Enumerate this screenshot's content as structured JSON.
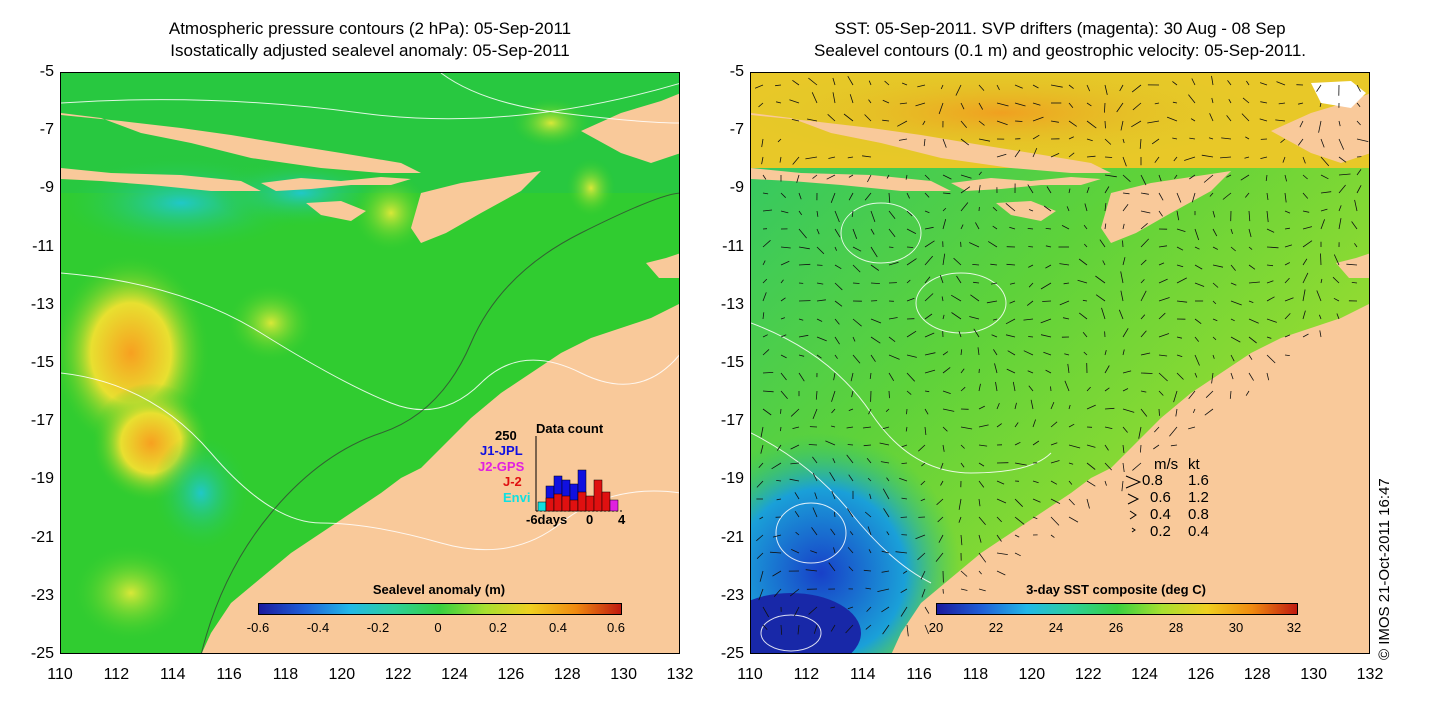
{
  "left_panel": {
    "title_line1": "Atmospheric pressure contours (2 hPa): 05-Sep-2011",
    "title_line2": "Isostatically adjusted sealevel anomaly: 05-Sep-2011",
    "colorbar": {
      "title": "Sealevel anomaly (m)",
      "ticks": [
        "-0.6",
        "-0.4",
        "-0.2",
        "0",
        "0.2",
        "0.4",
        "0.6"
      ]
    },
    "inset": {
      "title": "Data count",
      "ymax": "250",
      "sources": [
        {
          "label": "J1-JPL",
          "color": "#1010e0"
        },
        {
          "label": "J2-GPS",
          "color": "#e020e0"
        },
        {
          "label": "J-2",
          "color": "#e01010"
        },
        {
          "label": "Envi",
          "color": "#10e0e0"
        }
      ],
      "xlabel_left": "-6days",
      "xlabel_mid": "0",
      "xlabel_right": "4"
    }
  },
  "right_panel": {
    "title_line1": "SST: 05-Sep-2011. SVP drifters (magenta): 30 Aug - 08 Sep",
    "title_line2": "Sealevel contours (0.1 m) and geostrophic velocity: 05-Sep-2011.",
    "colorbar": {
      "title": "3-day SST composite (deg C)",
      "ticks": [
        "20",
        "22",
        "24",
        "26",
        "28",
        "30",
        "32"
      ]
    },
    "speed_legend": {
      "header_ms": "m/s",
      "header_kt": "kt",
      "rows": [
        {
          "ms": "0.8",
          "kt": "1.6"
        },
        {
          "ms": "0.6",
          "kt": "1.2"
        },
        {
          "ms": "0.4",
          "kt": "0.8"
        },
        {
          "ms": "0.2",
          "kt": "0.4"
        }
      ]
    },
    "copyright": "© IMOS 21-Oct-2011 16:47"
  },
  "axes": {
    "y_ticks": [
      "-5",
      "-7",
      "-9",
      "-11",
      "-13",
      "-15",
      "-17",
      "-19",
      "-21",
      "-23",
      "-25"
    ],
    "x_ticks": [
      "110",
      "112",
      "114",
      "116",
      "118",
      "120",
      "122",
      "124",
      "126",
      "128",
      "130",
      "132"
    ]
  },
  "colors": {
    "land": "#f9c99a",
    "ocean_left": "#2ccc2c",
    "ocean_right": "#7dd52a"
  }
}
